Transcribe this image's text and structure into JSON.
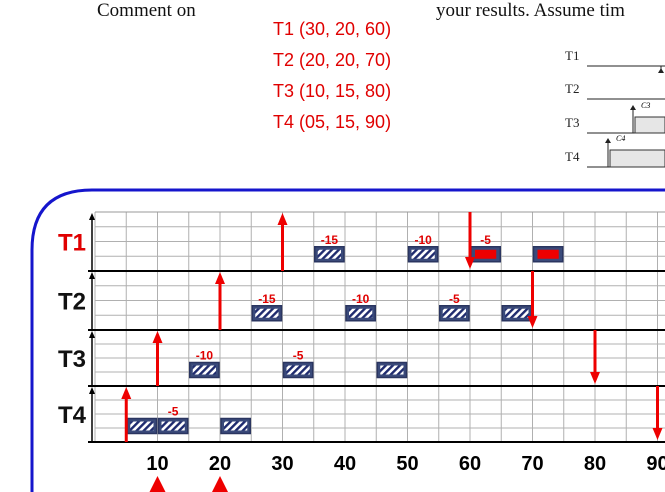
{
  "header": {
    "left_text": "Comment on",
    "right_text": "your results. Assume tim"
  },
  "tasks_spec": {
    "color": "#e00000",
    "items": [
      "T1 (30, 20, 60)",
      "T2 (20, 20, 70)",
      "T3 (10, 15, 80)",
      "T4 (05, 15, 90)"
    ]
  },
  "mini_timeline": {
    "rows": [
      "T1",
      "T2",
      "T3",
      "T4"
    ],
    "subscript_labels": [
      "C3",
      "C4"
    ]
  },
  "chart_data": {
    "type": "timeline",
    "rows": [
      {
        "name": "T1",
        "name_color": "#e00000",
        "arrivals": [
          30
        ],
        "deadlines": [
          60
        ],
        "hatched_blocks": [
          {
            "start": 35,
            "end": 40,
            "label": "-15"
          },
          {
            "start": 50,
            "end": 55,
            "label": "-10"
          }
        ],
        "solid_blocks": [
          {
            "start": 60,
            "end": 65,
            "label": "-5"
          },
          {
            "start": 70,
            "end": 75
          }
        ]
      },
      {
        "name": "T2",
        "name_color": "#111111",
        "arrivals": [
          20
        ],
        "deadlines": [
          70
        ],
        "hatched_blocks": [
          {
            "start": 25,
            "end": 30,
            "label": "-15"
          },
          {
            "start": 40,
            "end": 45,
            "label": "-10"
          },
          {
            "start": 55,
            "end": 60,
            "label": "-5"
          },
          {
            "start": 65,
            "end": 70
          }
        ],
        "solid_blocks": []
      },
      {
        "name": "T3",
        "name_color": "#111111",
        "arrivals": [
          10
        ],
        "deadlines": [
          80
        ],
        "hatched_blocks": [
          {
            "start": 15,
            "end": 20,
            "label": "-10"
          },
          {
            "start": 30,
            "end": 35,
            "label": "-5"
          },
          {
            "start": 45,
            "end": 50
          }
        ],
        "solid_blocks": []
      },
      {
        "name": "T4",
        "name_color": "#111111",
        "arrivals": [
          5
        ],
        "deadlines": [
          90
        ],
        "hatched_blocks": [
          {
            "start": 5,
            "end": 10
          },
          {
            "start": 10,
            "end": 15,
            "label": "-5"
          },
          {
            "start": 20,
            "end": 25
          }
        ],
        "solid_blocks": []
      }
    ],
    "x_ticks": [
      10,
      20,
      30,
      40,
      50,
      60,
      70,
      80,
      90
    ],
    "x_range": [
      0,
      95
    ],
    "bottom_arrows": [
      10,
      20
    ],
    "grid": true,
    "arrow_color": "#ee0000",
    "block_fill": "#1e2a6e"
  }
}
